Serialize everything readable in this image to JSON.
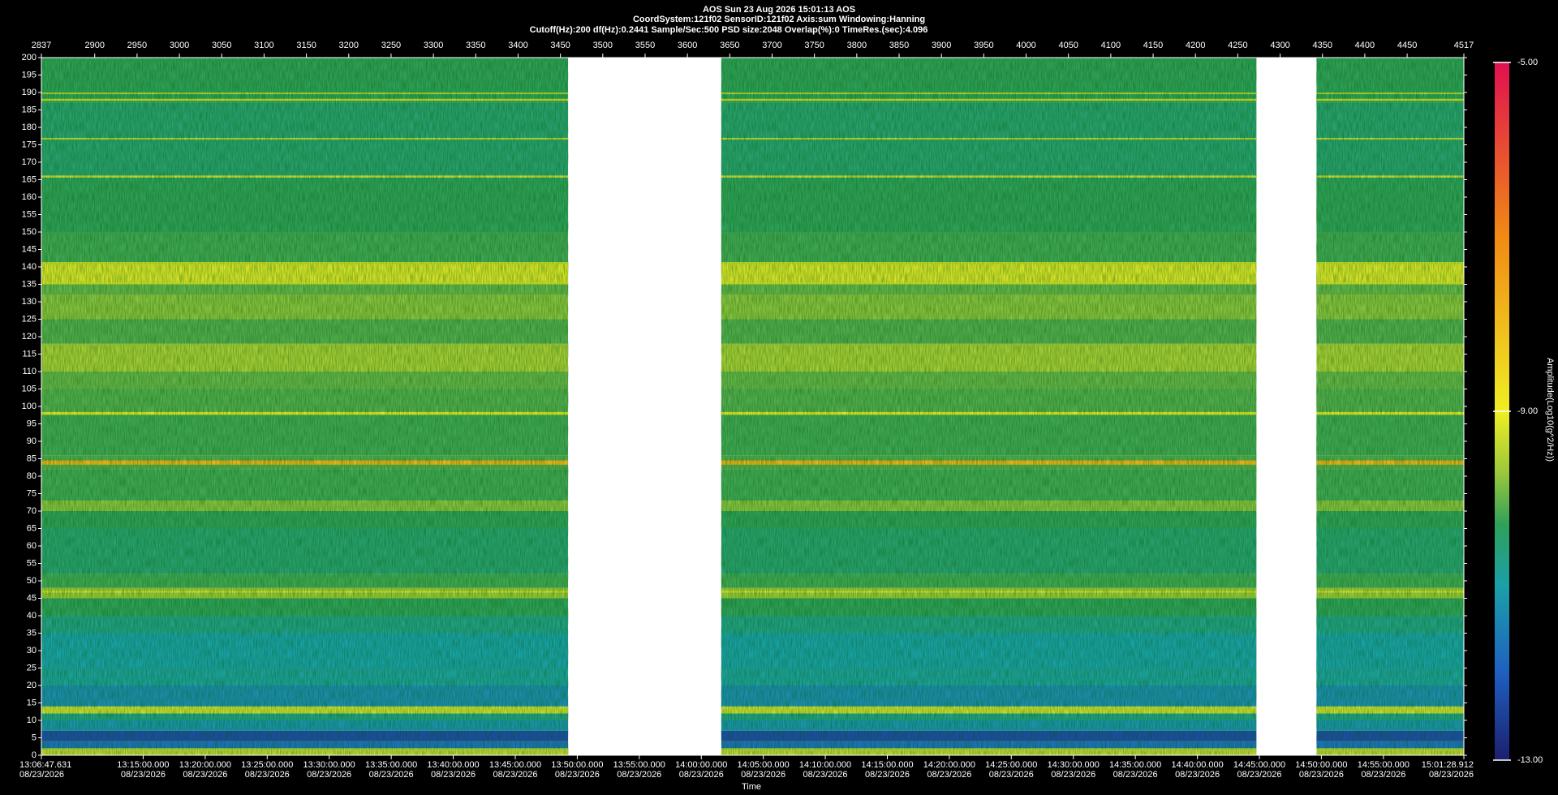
{
  "chart_data": {
    "type": "spectrogram",
    "header": [
      "AOS  Sun 23 Aug 2026 15:01:13  AOS",
      "CoordSystem:121f02   SensorID:121f02   Axis:sum   Windowing:Hanning",
      "Cutoff(Hz):200     df(Hz):0.2441     Sample/Sec:500     PSD size:2048     Overlap(%):0     TimeRes.(sec):4.096"
    ],
    "xlabel": "Time",
    "clabel": "Amplitude(Log10(g^2/Hz))",
    "xlim": [
      2837,
      4517
    ],
    "xticks": [
      2837,
      2900,
      2950,
      3000,
      3050,
      3100,
      3150,
      3200,
      3250,
      3300,
      3350,
      3400,
      3450,
      3500,
      3550,
      3600,
      3650,
      3700,
      3750,
      3800,
      3850,
      3900,
      3950,
      4000,
      4050,
      4100,
      4150,
      4200,
      4250,
      4300,
      4350,
      4400,
      4450,
      4517
    ],
    "x2ticks": [
      {
        "value": 2837,
        "label": "13:06:47.631"
      },
      {
        "value": 2957.2,
        "label": "13:15:00.000"
      },
      {
        "value": 3030.5,
        "label": "13:20:00.000"
      },
      {
        "value": 3103.7,
        "label": "13:25:00.000"
      },
      {
        "value": 3176.9,
        "label": "13:30:00.000"
      },
      {
        "value": 3250.2,
        "label": "13:35:00.000"
      },
      {
        "value": 3323.4,
        "label": "13:40:00.000"
      },
      {
        "value": 3396.7,
        "label": "13:45:00.000"
      },
      {
        "value": 3469.9,
        "label": "13:50:00.000"
      },
      {
        "value": 3543.1,
        "label": "13:55:00.000"
      },
      {
        "value": 3616.4,
        "label": "14:00:00.000"
      },
      {
        "value": 3689.6,
        "label": "14:05:00.000"
      },
      {
        "value": 3762.8,
        "label": "14:10:00.000"
      },
      {
        "value": 3836.1,
        "label": "14:15:00.000"
      },
      {
        "value": 3909.3,
        "label": "14:20:00.000"
      },
      {
        "value": 3982.5,
        "label": "14:25:00.000"
      },
      {
        "value": 4055.8,
        "label": "14:30:00.000"
      },
      {
        "value": 4129.0,
        "label": "14:35:00.000"
      },
      {
        "value": 4202.3,
        "label": "14:40:00.000"
      },
      {
        "value": 4275.5,
        "label": "14:45:00.000"
      },
      {
        "value": 4348.7,
        "label": "14:50:00.000"
      },
      {
        "value": 4422.0,
        "label": "14:55:00.000"
      },
      {
        "value": 4517,
        "label": "15:01:28.912"
      }
    ],
    "x2tick_dates": [
      "08/23/2026",
      "08/23/2026",
      "08/23/2026",
      "08/23/2026",
      "08/23/2026",
      "08/23/2026",
      "08/23/2026",
      "08/23/2026",
      "08/23/2026",
      "08/23/2026",
      "08/23/2026",
      "08/23/2026",
      "08/23/2026",
      "08/23/2026",
      "08/23/2026",
      "08/23/2026",
      "08/23/2026",
      "08/23/2026",
      "08/23/2026",
      "08/23/2026",
      "08/23/2026",
      "08/23/2026",
      "08/23/2026"
    ],
    "ylim": [
      0,
      200
    ],
    "yticks": [
      0,
      5,
      10,
      15,
      20,
      25,
      30,
      35,
      40,
      45,
      50,
      55,
      60,
      65,
      70,
      75,
      80,
      85,
      90,
      95,
      100,
      105,
      110,
      115,
      120,
      125,
      130,
      135,
      140,
      145,
      150,
      155,
      160,
      165,
      170,
      175,
      180,
      185,
      190,
      195,
      200
    ],
    "clim": [
      -13,
      -5
    ],
    "cticks": [
      {
        "value": -13,
        "label": "-13.00"
      },
      {
        "value": -9,
        "label": "-9.00"
      },
      {
        "value": -5,
        "label": "-5.00"
      }
    ],
    "colormap": [
      {
        "value": -13,
        "color": "#1b1f6e"
      },
      {
        "value": -12,
        "color": "#1f5fc0"
      },
      {
        "value": -11,
        "color": "#1aa0a8"
      },
      {
        "value": -10.3,
        "color": "#2fa05a"
      },
      {
        "value": -9.7,
        "color": "#9bc83a"
      },
      {
        "value": -9,
        "color": "#f0ee24"
      },
      {
        "value": -7,
        "color": "#f08a14"
      },
      {
        "value": -5,
        "color": "#e01050"
      }
    ],
    "segments": [
      [
        2837,
        3459
      ],
      [
        3640,
        4272
      ],
      [
        4343,
        4517
      ]
    ],
    "bands": [
      {
        "range": [
          0,
          2
        ],
        "value": -9.4
      },
      {
        "range": [
          2,
          4
        ],
        "value": -11.7
      },
      {
        "range": [
          4,
          7
        ],
        "value": -12.3
      },
      {
        "range": [
          7,
          10
        ],
        "value": -11.2
      },
      {
        "range": [
          10,
          12
        ],
        "value": -10.7
      },
      {
        "range": [
          12,
          14
        ],
        "value": -9.3
      },
      {
        "range": [
          14,
          20
        ],
        "value": -11.3
      },
      {
        "range": [
          20,
          25
        ],
        "value": -10.9
      },
      {
        "range": [
          25,
          35
        ],
        "value": -11.0
      },
      {
        "range": [
          35,
          40
        ],
        "value": -10.7
      },
      {
        "range": [
          40,
          45
        ],
        "value": -10.3
      },
      {
        "range": [
          45,
          48
        ],
        "value": -9.7
      },
      {
        "range": [
          48,
          52
        ],
        "value": -10.2
      },
      {
        "range": [
          52,
          65
        ],
        "value": -10.5
      },
      {
        "range": [
          65,
          70
        ],
        "value": -10.3
      },
      {
        "range": [
          70,
          73
        ],
        "value": -9.8
      },
      {
        "range": [
          73,
          82
        ],
        "value": -10.2
      },
      {
        "range": [
          82,
          86
        ],
        "value": -10.1
      },
      {
        "range": [
          86,
          98
        ],
        "value": -10.2
      },
      {
        "range": [
          98,
          105
        ],
        "value": -10.1
      },
      {
        "range": [
          105,
          110
        ],
        "value": -10.0
      },
      {
        "range": [
          110,
          118
        ],
        "value": -9.6
      },
      {
        "range": [
          118,
          125
        ],
        "value": -10.1
      },
      {
        "range": [
          125,
          132
        ],
        "value": -9.8
      },
      {
        "range": [
          132,
          135
        ],
        "value": -10.0
      },
      {
        "range": [
          135,
          141
        ],
        "value": -9.2
      },
      {
        "range": [
          141,
          150
        ],
        "value": -10.2
      },
      {
        "range": [
          150,
          165
        ],
        "value": -10.3
      },
      {
        "range": [
          165,
          187
        ],
        "value": -10.5
      },
      {
        "range": [
          187,
          200
        ],
        "value": -10.3
      }
    ],
    "lines": [
      {
        "range": [
          83.3,
          84.5
        ],
        "value": -7.8
      },
      {
        "range": [
          97.6,
          98.4
        ],
        "value": -9.1
      },
      {
        "range": [
          46.6,
          47.2
        ],
        "value": -9.3
      },
      {
        "range": [
          140.8,
          141.4
        ],
        "value": -9.3
      },
      {
        "range": [
          165.6,
          166.2
        ],
        "value": -9.3
      },
      {
        "range": [
          176.5,
          177.0
        ],
        "value": -9.4
      },
      {
        "range": [
          187.6,
          188.2
        ],
        "value": -9.3
      },
      {
        "range": [
          189.5,
          190.0
        ],
        "value": -9.5
      }
    ]
  }
}
